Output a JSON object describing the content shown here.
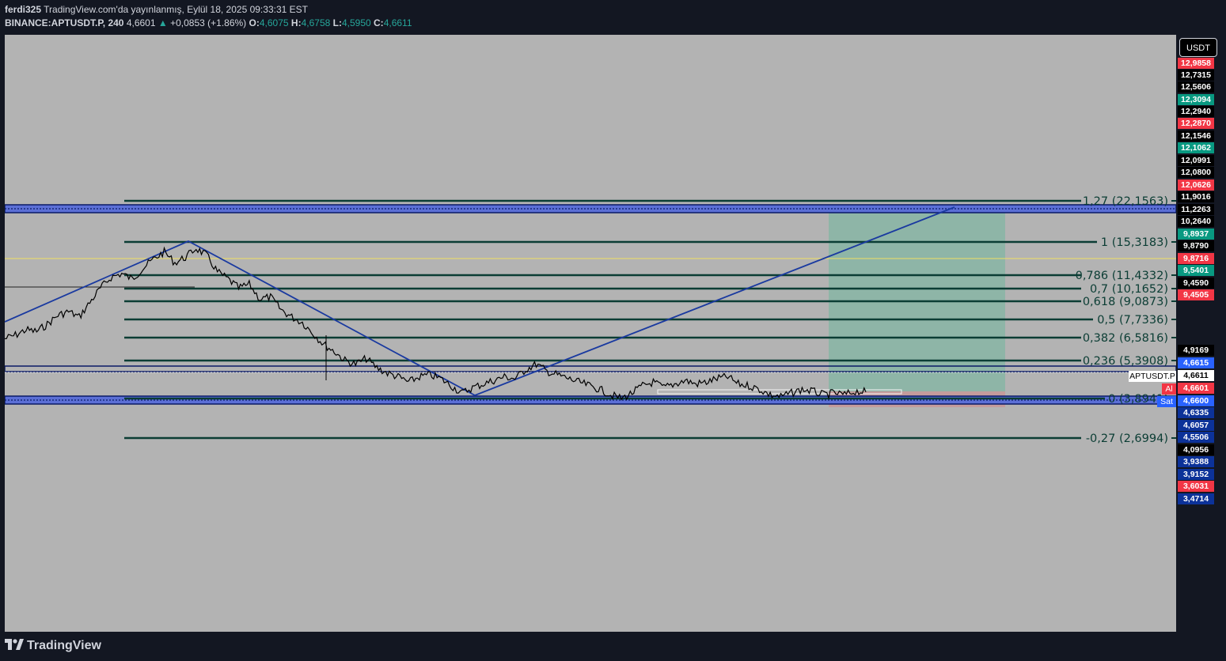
{
  "header": {
    "author": "ferdi325",
    "published": "TradingView.com'da yayınlanmış, Eylül 18, 2025 09:33:31 EST",
    "symbol": "BINANCE:APTUSDT.P, 240",
    "last": "4,6601",
    "change_arrow": "▲",
    "change": "+0,0853 (+1.86%)",
    "o_label": "O:",
    "o_value": "4,6075",
    "h_label": "H:",
    "h_value": "4,6758",
    "l_label": "L:",
    "l_value": "4,5950",
    "c_label": "C:",
    "c_value": "4,6611"
  },
  "axis": {
    "currency": "USDT",
    "labels": [
      {
        "text": "12,9858",
        "bg": "#f23645"
      },
      {
        "text": "12,7315",
        "bg": "#000000"
      },
      {
        "text": "12,5606",
        "bg": "#000000"
      },
      {
        "text": "12,3094",
        "bg": "#089981"
      },
      {
        "text": "12,2940",
        "bg": "#000000"
      },
      {
        "text": "12,2870",
        "bg": "#f23645"
      },
      {
        "text": "12,1546",
        "bg": "#000000"
      },
      {
        "text": "12,1062",
        "bg": "#089981"
      },
      {
        "text": "12,0991",
        "bg": "#000000"
      },
      {
        "text": "12,0800",
        "bg": "#000000"
      },
      {
        "text": "12,0626",
        "bg": "#f23645"
      },
      {
        "text": "11,9016",
        "bg": "#000000"
      },
      {
        "text": "11,2263",
        "bg": "#000000"
      },
      {
        "text": "10,2640",
        "bg": "#000000"
      },
      {
        "text": "9,8937",
        "bg": "#089981"
      },
      {
        "text": "9,8790",
        "bg": "#000000"
      },
      {
        "text": "9,8716",
        "bg": "#f23645"
      },
      {
        "text": "9,5401",
        "bg": "#089981"
      },
      {
        "text": "9,4590",
        "bg": "#000000"
      },
      {
        "text": "9,4505",
        "bg": "#f23645"
      },
      {
        "text": "4,9169",
        "bg": "#000000"
      },
      {
        "text": "4,6615",
        "bg": "#2962ff"
      },
      {
        "text": "4,6611",
        "bg": "#ffffff"
      },
      {
        "text": "4,6601",
        "bg": "#f23645"
      },
      {
        "text": "4,6600",
        "bg": "#2962ff"
      },
      {
        "text": "4,6335",
        "bg": "#0c3299"
      },
      {
        "text": "4,6057",
        "bg": "#0c3299"
      },
      {
        "text": "4,5506",
        "bg": "#0c3299"
      },
      {
        "text": "4,0956",
        "bg": "#000000"
      },
      {
        "text": "3,9388",
        "bg": "#0c3299"
      },
      {
        "text": "3,9152",
        "bg": "#0c3299"
      },
      {
        "text": "3,6031",
        "bg": "#f23645"
      },
      {
        "text": "3,4714",
        "bg": "#0c3299"
      }
    ],
    "symbol_tag": "APTUSDT.P",
    "al_tag": "Al",
    "sat_tag": "Sat"
  },
  "chart_data": {
    "type": "line",
    "title": "",
    "series": [
      {
        "values": [
          7.6,
          7.8,
          8.1,
          8.0,
          8.4,
          8.9,
          9.1,
          8.8,
          9.6,
          10.4,
          11.0,
          11.2,
          10.9,
          11.5,
          12.0,
          12.4,
          11.8,
          12.1,
          12.6,
          12.2,
          11.3,
          10.9,
          10.4,
          10.6,
          9.8,
          9.9,
          9.2,
          8.8,
          8.5,
          7.9,
          7.3,
          6.9,
          6.4,
          6.2,
          6.5,
          6.0,
          5.7,
          5.5,
          5.2,
          5.5,
          5.6,
          5.4,
          5.0,
          4.6,
          4.9,
          5.1,
          5.3,
          5.5,
          5.4,
          5.9,
          6.2,
          5.8,
          5.6,
          5.4,
          5.2,
          5.0,
          4.8,
          4.5,
          4.3,
          4.6,
          5.0,
          5.2,
          4.9,
          5.1,
          5.3,
          5.1,
          5.2,
          5.4,
          5.5,
          5.1,
          5.0,
          4.8,
          4.5,
          4.4,
          4.6,
          4.8,
          4.7,
          4.5,
          4.6,
          4.5,
          4.7,
          4.6611
        ]
      }
    ],
    "fibonacci": [
      {
        "level": "1,27",
        "value": "22,1563"
      },
      {
        "level": "1",
        "value": "15,3183"
      },
      {
        "level": "0,786",
        "value": "11,4332"
      },
      {
        "level": "0,7",
        "value": "10,1652"
      },
      {
        "level": "0,618",
        "value": "9,0873"
      },
      {
        "level": "0,5",
        "value": "7,7336"
      },
      {
        "level": "0,382",
        "value": "6,5816"
      },
      {
        "level": "0,236",
        "value": "5,3908"
      },
      {
        "level": "0",
        "value": "3,8941"
      },
      {
        "level": "-0,27",
        "value": "2,6994"
      }
    ],
    "colors": {
      "fib_line": "#0b3d34",
      "zone_fill": "#5b6fd6",
      "zigzag": "#1a3aa0",
      "target_box": "#7fb7a3",
      "stop_box": "#e57373",
      "price_line": "#000000",
      "yellow_line": "#f0e060"
    }
  },
  "footer": {
    "brand": "TradingView"
  }
}
